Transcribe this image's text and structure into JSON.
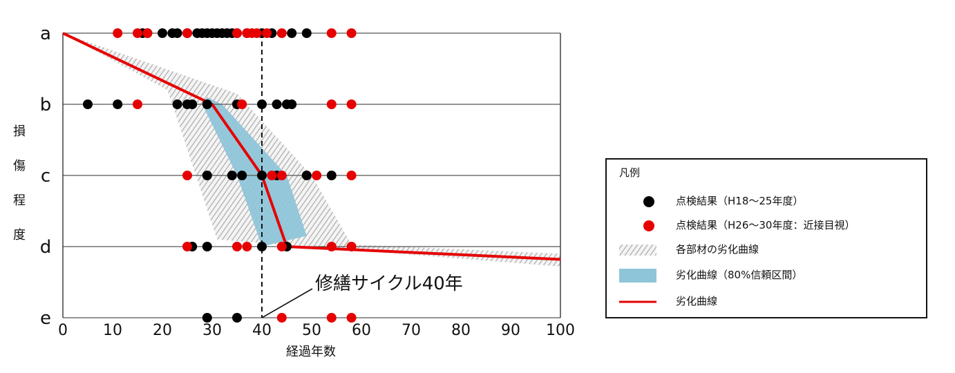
{
  "chart_data": {
    "type": "scatter",
    "xlabel": "経過年数",
    "ylabel": "損傷程度",
    "xlim": [
      0,
      100
    ],
    "x_ticks": [
      "0",
      "10",
      "20",
      "30",
      "40",
      "50",
      "60",
      "70",
      "80",
      "90",
      "100"
    ],
    "y_categories": [
      "a",
      "b",
      "c",
      "d",
      "e"
    ],
    "grid": "horizontal lines at each damage level",
    "legend_position": "right",
    "annotation": {
      "text": "修繕サイクル40年",
      "x": 40
    },
    "series": [
      {
        "name": "点検結果（H18～25年度）",
        "color": "#000000",
        "points": [
          {
            "x": 16,
            "y": "a"
          },
          {
            "x": 17,
            "y": "a"
          },
          {
            "x": 20,
            "y": "a"
          },
          {
            "x": 22,
            "y": "a"
          },
          {
            "x": 23,
            "y": "a"
          },
          {
            "x": 25,
            "y": "a"
          },
          {
            "x": 27,
            "y": "a"
          },
          {
            "x": 28,
            "y": "a"
          },
          {
            "x": 29,
            "y": "a"
          },
          {
            "x": 30,
            "y": "a"
          },
          {
            "x": 31,
            "y": "a"
          },
          {
            "x": 32,
            "y": "a"
          },
          {
            "x": 33,
            "y": "a"
          },
          {
            "x": 34,
            "y": "a"
          },
          {
            "x": 35,
            "y": "a"
          },
          {
            "x": 37,
            "y": "a"
          },
          {
            "x": 40,
            "y": "a"
          },
          {
            "x": 42,
            "y": "a"
          },
          {
            "x": 46,
            "y": "a"
          },
          {
            "x": 49,
            "y": "a"
          },
          {
            "x": 5,
            "y": "b"
          },
          {
            "x": 11,
            "y": "b"
          },
          {
            "x": 23,
            "y": "b"
          },
          {
            "x": 25,
            "y": "b"
          },
          {
            "x": 26,
            "y": "b"
          },
          {
            "x": 29,
            "y": "b"
          },
          {
            "x": 35,
            "y": "b"
          },
          {
            "x": 40,
            "y": "b"
          },
          {
            "x": 43,
            "y": "b"
          },
          {
            "x": 45,
            "y": "b"
          },
          {
            "x": 46,
            "y": "b"
          },
          {
            "x": 29,
            "y": "c"
          },
          {
            "x": 34,
            "y": "c"
          },
          {
            "x": 36,
            "y": "c"
          },
          {
            "x": 40,
            "y": "c"
          },
          {
            "x": 43,
            "y": "c"
          },
          {
            "x": 49,
            "y": "c"
          },
          {
            "x": 54,
            "y": "c"
          },
          {
            "x": 26,
            "y": "d"
          },
          {
            "x": 29,
            "y": "d"
          },
          {
            "x": 40,
            "y": "d"
          },
          {
            "x": 45,
            "y": "d"
          },
          {
            "x": 29,
            "y": "e"
          },
          {
            "x": 35,
            "y": "e"
          }
        ]
      },
      {
        "name": "点検結果（H26～30年度：近接目視）",
        "color": "#e60000",
        "points": [
          {
            "x": 11,
            "y": "a"
          },
          {
            "x": 15,
            "y": "a"
          },
          {
            "x": 17,
            "y": "a"
          },
          {
            "x": 25,
            "y": "a"
          },
          {
            "x": 35,
            "y": "a"
          },
          {
            "x": 37,
            "y": "a"
          },
          {
            "x": 38,
            "y": "a"
          },
          {
            "x": 39,
            "y": "a"
          },
          {
            "x": 41,
            "y": "a"
          },
          {
            "x": 44,
            "y": "a"
          },
          {
            "x": 54,
            "y": "a"
          },
          {
            "x": 58,
            "y": "a"
          },
          {
            "x": 15,
            "y": "b"
          },
          {
            "x": 36,
            "y": "b"
          },
          {
            "x": 54,
            "y": "b"
          },
          {
            "x": 58,
            "y": "b"
          },
          {
            "x": 25,
            "y": "c"
          },
          {
            "x": 42,
            "y": "c"
          },
          {
            "x": 44,
            "y": "c"
          },
          {
            "x": 51,
            "y": "c"
          },
          {
            "x": 58,
            "y": "c"
          },
          {
            "x": 25,
            "y": "d"
          },
          {
            "x": 35,
            "y": "d"
          },
          {
            "x": 37,
            "y": "d"
          },
          {
            "x": 44,
            "y": "d"
          },
          {
            "x": 54,
            "y": "d"
          },
          {
            "x": 58,
            "y": "d"
          },
          {
            "x": 44,
            "y": "e"
          },
          {
            "x": 54,
            "y": "e"
          },
          {
            "x": 58,
            "y": "e"
          }
        ]
      },
      {
        "name": "劣化曲線",
        "color": "#e60000",
        "type": "line",
        "points": [
          {
            "x": 0,
            "y": "a"
          },
          {
            "x": 30,
            "y": "b"
          },
          {
            "x": 40,
            "y": "c"
          },
          {
            "x": 45,
            "y": "d"
          },
          {
            "x": 100,
            "y": 3.18
          }
        ]
      }
    ],
    "bands": [
      {
        "name": "各部材の劣化曲線",
        "pattern": "gray diagonal hatch",
        "upper": [
          {
            "x": 0,
            "y": 0
          },
          {
            "x": 35,
            "y": 0.85
          },
          {
            "x": 50,
            "y": 2.0
          },
          {
            "x": 58,
            "y": 2.97
          },
          {
            "x": 100,
            "y": 3.1
          }
        ],
        "lower": [
          {
            "x": 0,
            "y": 0
          },
          {
            "x": 21,
            "y": 0.8
          },
          {
            "x": 22,
            "y": 1.0
          },
          {
            "x": 31,
            "y": 2.9
          },
          {
            "x": 100,
            "y": 3.28
          }
        ]
      },
      {
        "name": "劣化曲線（80%信頼区間）",
        "color": "#8fc5d9",
        "upper": [
          {
            "x": 29,
            "y": 0.9
          },
          {
            "x": 32,
            "y": 1.0
          },
          {
            "x": 45,
            "y": 2.0
          },
          {
            "x": 49,
            "y": 2.85
          }
        ],
        "lower": [
          {
            "x": 28,
            "y": 1.0
          },
          {
            "x": 35,
            "y": 2.0
          },
          {
            "x": 40,
            "y": 3.0
          }
        ]
      }
    ]
  },
  "legend": {
    "title": "凡例",
    "items": [
      {
        "label": "点検結果（H18～25年度）",
        "icon": "black-dot",
        "color": "#000000"
      },
      {
        "label": "点検結果（H26～30年度：近接目視）",
        "icon": "red-dot",
        "color": "#e60000"
      },
      {
        "label": "各部材の劣化曲線",
        "icon": "gray-hatch-swatch",
        "color": "#9a9a9a"
      },
      {
        "label": "劣化曲線（80%信頼区間）",
        "icon": "blue-band-swatch",
        "color": "#8fc5d9"
      },
      {
        "label": "劣化曲線",
        "icon": "red-line",
        "color": "#e60000"
      }
    ]
  }
}
